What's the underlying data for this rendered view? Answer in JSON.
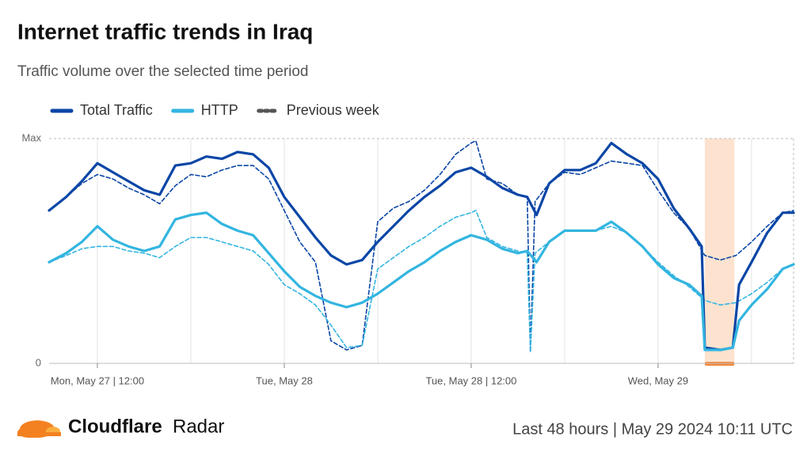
{
  "chart_data": {
    "type": "line",
    "title": "Internet traffic trends in Iraq",
    "subtitle": "Traffic volume over the selected time period",
    "xlim": [
      8.9,
      56.7
    ],
    "xticks": [
      {
        "value": 12,
        "label": "Mon, May 27 | 12:00"
      },
      {
        "value": 24,
        "label": "Tue, May 28"
      },
      {
        "value": 36,
        "label": "Tue, May 28 | 12:00"
      },
      {
        "value": 48,
        "label": "Wed, May 29"
      }
    ],
    "xgrid": [
      12,
      18,
      24,
      30,
      36,
      42,
      48,
      54
    ],
    "ylim": [
      0,
      100
    ],
    "yticks": [
      0,
      {
        "value": 100,
        "label": "Max"
      }
    ],
    "highlight": [
      51.0,
      52.9
    ],
    "series": [
      {
        "name": "Total Traffic",
        "color": "#0b46a6",
        "dashed": false,
        "x": [
          8.9,
          10,
          11,
          12,
          13,
          14,
          15,
          16,
          17,
          18,
          19,
          20,
          21,
          22,
          23,
          24,
          25,
          26,
          27,
          28,
          29,
          30,
          31,
          32,
          33,
          34,
          35,
          36,
          37,
          38,
          39,
          39.6,
          40.2,
          41,
          42,
          43,
          44,
          45,
          46,
          47,
          48,
          49,
          50,
          50.8,
          51,
          52,
          52.8,
          53.2,
          54,
          55,
          56,
          56.7
        ],
        "values": [
          68,
          74,
          81,
          89,
          85,
          81,
          77,
          75,
          88,
          89,
          92,
          91,
          94,
          93,
          87,
          74,
          65,
          56,
          48,
          44,
          46,
          54,
          61,
          68,
          74,
          79,
          85,
          87,
          83,
          78,
          75,
          74,
          66,
          80,
          86,
          86,
          89,
          98,
          93,
          89,
          82,
          69,
          60,
          52,
          7,
          6,
          7,
          35,
          45,
          58,
          67,
          67
        ]
      },
      {
        "name": "HTTP",
        "color": "#33b5e0",
        "dashed": false,
        "x": [
          8.9,
          10,
          11,
          12,
          13,
          14,
          15,
          16,
          17,
          18,
          19,
          20,
          21,
          22,
          23,
          24,
          25,
          26,
          27,
          28,
          29,
          30,
          31,
          32,
          33,
          34,
          35,
          36,
          37,
          38,
          39,
          39.6,
          40.2,
          41,
          42,
          43,
          44,
          45,
          46,
          47,
          48,
          49,
          50,
          50.8,
          51,
          52,
          52.8,
          53.2,
          54,
          55,
          56,
          56.7
        ],
        "values": [
          45,
          49,
          54,
          61,
          55,
          52,
          50,
          52,
          64,
          66,
          67,
          62,
          59,
          57,
          49,
          41,
          34,
          30,
          27,
          25,
          27,
          31,
          36,
          41,
          45,
          50,
          54,
          57,
          55,
          51,
          49,
          50,
          45,
          54,
          59,
          59,
          59,
          63,
          58,
          52,
          44,
          38,
          35,
          30,
          6,
          6,
          7,
          19,
          26,
          33,
          42,
          44
        ]
      },
      {
        "name": "Previous week",
        "color": "#0b46a6",
        "dashed": true,
        "x": [
          8.9,
          10,
          11,
          12,
          13,
          14,
          15,
          16,
          17,
          18,
          19,
          20,
          21,
          22,
          23,
          24,
          25,
          26,
          27,
          28,
          29,
          30,
          31,
          32,
          33,
          34,
          35,
          36,
          36.3,
          37,
          38,
          39,
          39.6,
          39.8,
          40.1,
          41,
          42,
          43,
          44,
          45,
          46,
          47,
          48,
          49,
          50,
          51,
          52,
          53,
          54,
          55,
          56,
          56.7
        ],
        "values": [
          68,
          74,
          80,
          84,
          82,
          78,
          75,
          71,
          79,
          84,
          83,
          86,
          88,
          88,
          82,
          68,
          54,
          45,
          10,
          6,
          8,
          63,
          69,
          72,
          77,
          84,
          93,
          98,
          99,
          82,
          80,
          75,
          74,
          5,
          72,
          80,
          85,
          84,
          87,
          90,
          89,
          88,
          77,
          67,
          60,
          48,
          46,
          48,
          54,
          61,
          67,
          68
        ]
      },
      {
        "color": "#33b5e0",
        "dashed": true,
        "x": [
          8.9,
          10,
          11,
          12,
          13,
          14,
          15,
          16,
          17,
          18,
          19,
          20,
          21,
          22,
          23,
          24,
          25,
          26,
          27,
          28,
          29,
          30,
          31,
          32,
          33,
          34,
          35,
          36,
          36.3,
          37,
          38,
          39,
          39.6,
          39.8,
          40.1,
          41,
          42,
          43,
          44,
          45,
          46,
          47,
          48,
          49,
          50,
          51,
          52,
          53,
          54,
          55,
          56,
          56.7
        ],
        "values": [
          45,
          48,
          51,
          52,
          52,
          50,
          49,
          47,
          52,
          56,
          56,
          54,
          52,
          50,
          44,
          35,
          31,
          26,
          17,
          7,
          8,
          42,
          47,
          52,
          56,
          61,
          65,
          67,
          68,
          56,
          52,
          50,
          49,
          5,
          49,
          54,
          59,
          59,
          59,
          61,
          58,
          52,
          45,
          39,
          34,
          28,
          26,
          27,
          31,
          36,
          42,
          44
        ]
      }
    ],
    "brand": "Cloudflare",
    "product": "Radar",
    "footer": "Last 48 hours | May 29 2024 10:11 UTC"
  }
}
